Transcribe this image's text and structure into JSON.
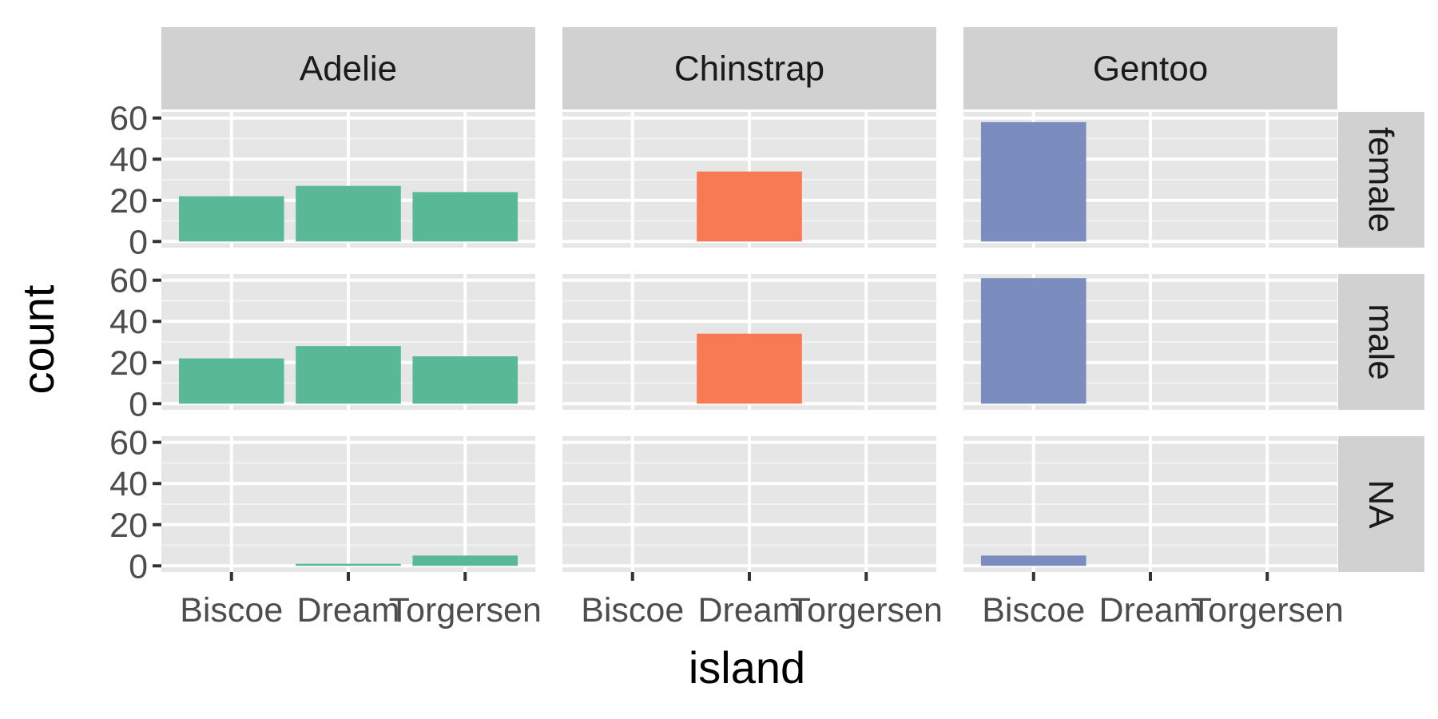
{
  "chart_data": {
    "type": "bar",
    "xlabel": "island",
    "ylabel": "count",
    "ylim": [
      0,
      60
    ],
    "y_ticks": [
      0,
      20,
      40,
      60
    ],
    "categories": [
      "Biscoe",
      "Dream",
      "Torgersen"
    ],
    "facet_cols": [
      "Adelie",
      "Chinstrap",
      "Gentoo"
    ],
    "facet_rows": [
      "female",
      "male",
      "NA"
    ],
    "colors": {
      "Adelie": "#59b996",
      "Chinstrap": "#f87a52",
      "Gentoo": "#7b8cbf",
      "panel_bg": "#e6e6e6",
      "strip_bg": "#d1d1d1"
    },
    "series": [
      {
        "facet_col": "Adelie",
        "facet_row": "female",
        "values": [
          22,
          27,
          24
        ]
      },
      {
        "facet_col": "Adelie",
        "facet_row": "male",
        "values": [
          22,
          28,
          23
        ]
      },
      {
        "facet_col": "Adelie",
        "facet_row": "NA",
        "values": [
          0,
          1,
          5
        ]
      },
      {
        "facet_col": "Chinstrap",
        "facet_row": "female",
        "values": [
          0,
          34,
          0
        ]
      },
      {
        "facet_col": "Chinstrap",
        "facet_row": "male",
        "values": [
          0,
          34,
          0
        ]
      },
      {
        "facet_col": "Chinstrap",
        "facet_row": "NA",
        "values": [
          0,
          0,
          0
        ]
      },
      {
        "facet_col": "Gentoo",
        "facet_row": "female",
        "values": [
          58,
          0,
          0
        ]
      },
      {
        "facet_col": "Gentoo",
        "facet_row": "male",
        "values": [
          61,
          0,
          0
        ]
      },
      {
        "facet_col": "Gentoo",
        "facet_row": "NA",
        "values": [
          5,
          0,
          0
        ]
      }
    ],
    "grid": true,
    "legend": "none"
  }
}
